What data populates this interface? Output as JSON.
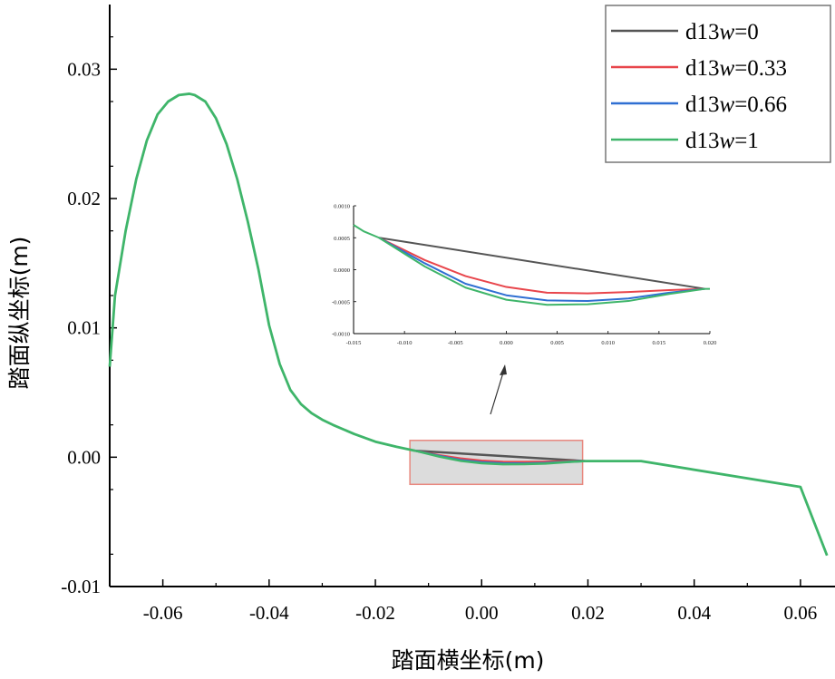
{
  "chart_data": {
    "type": "line",
    "title": "",
    "xlabel": "踏面横坐标(m)",
    "ylabel": "踏面纵坐标(m)",
    "xlim": [
      -0.07,
      0.0665
    ],
    "ylim": [
      -0.01,
      0.035
    ],
    "xticks": [
      "-0.06",
      "-0.04",
      "-0.02",
      "0.00",
      "0.02",
      "0.04",
      "0.06"
    ],
    "xtick_values": [
      -0.06,
      -0.04,
      -0.02,
      0.0,
      0.02,
      0.04,
      0.06
    ],
    "yticks": [
      "-0.01",
      "0.00",
      "0.01",
      "0.02",
      "0.03"
    ],
    "ytick_values": [
      -0.01,
      0.0,
      0.01,
      0.02,
      0.03
    ],
    "legend_position": "top-right",
    "common_profile": {
      "x": [
        -0.07,
        -0.069,
        -0.067,
        -0.065,
        -0.063,
        -0.061,
        -0.059,
        -0.057,
        -0.055,
        -0.054,
        -0.052,
        -0.05,
        -0.048,
        -0.046,
        -0.044,
        -0.042,
        -0.04,
        -0.038,
        -0.036,
        -0.034,
        -0.032,
        -0.03,
        -0.028,
        -0.024,
        -0.02,
        -0.016,
        -0.0125
      ],
      "y": [
        0.007,
        0.0125,
        0.0175,
        0.0215,
        0.0245,
        0.0265,
        0.0275,
        0.028,
        0.0281,
        0.028,
        0.0275,
        0.0262,
        0.0242,
        0.0215,
        0.0182,
        0.0145,
        0.0102,
        0.0072,
        0.0052,
        0.0041,
        0.0034,
        0.0029,
        0.0025,
        0.0018,
        0.0012,
        0.0008,
        0.0005
      ]
    },
    "tail_profile": {
      "x": [
        0.0195,
        0.03,
        0.06,
        0.065
      ],
      "y": [
        -0.0003,
        -0.0003,
        -0.0023,
        -0.0076
      ]
    },
    "series": [
      {
        "name": "d13w=0",
        "label_prefix": "d13",
        "label_var": "w",
        "label_value": "=0",
        "color": "#555555",
        "x": [
          -0.0125,
          0.0195
        ],
        "y": [
          0.0005,
          -0.0003
        ]
      },
      {
        "name": "d13w=0.33",
        "label_prefix": "d13",
        "label_var": "w",
        "label_value": "=0.33",
        "color": "#e8454b",
        "x": [
          -0.0125,
          -0.008,
          -0.004,
          0.0,
          0.004,
          0.008,
          0.012,
          0.016,
          0.0195
        ],
        "y": [
          0.0005,
          0.00015,
          -0.0001,
          -0.00027,
          -0.00036,
          -0.00037,
          -0.00035,
          -0.00032,
          -0.0003
        ]
      },
      {
        "name": "d13w=0.66",
        "label_prefix": "d13",
        "label_var": "w",
        "label_value": "=0.66",
        "color": "#2f6fd2",
        "x": [
          -0.0125,
          -0.008,
          -0.004,
          0.0,
          0.004,
          0.008,
          0.012,
          0.016,
          0.0195
        ],
        "y": [
          0.0005,
          0.0001,
          -0.00022,
          -0.0004,
          -0.00048,
          -0.00049,
          -0.00045,
          -0.00036,
          -0.0003
        ]
      },
      {
        "name": "d13w=1",
        "label_prefix": "d13",
        "label_var": "w",
        "label_value": "=1",
        "color": "#3fb56a",
        "x": [
          -0.0125,
          -0.008,
          -0.004,
          0.0,
          0.004,
          0.008,
          0.012,
          0.016,
          0.0195
        ],
        "y": [
          0.0005,
          5e-05,
          -0.00028,
          -0.00047,
          -0.00055,
          -0.00054,
          -0.00049,
          -0.00038,
          -0.0003
        ]
      }
    ],
    "zoom_box": {
      "xlim": [
        -0.0135,
        0.019
      ],
      "ylim": [
        -0.0021,
        0.0013
      ]
    },
    "inset": {
      "xlim": [
        -0.015,
        0.02
      ],
      "ylim": [
        -0.001,
        0.001
      ],
      "xticks": [
        "-0.015",
        "-0.010",
        "-0.005",
        "0.000",
        "0.005",
        "0.010",
        "0.015",
        "0.020"
      ],
      "xtick_values": [
        -0.015,
        -0.01,
        -0.005,
        0.0,
        0.005,
        0.01,
        0.015,
        0.02
      ],
      "yticks": [
        "0.0010",
        "0.0005",
        "0.0000",
        "-0.0005",
        "-0.0010"
      ],
      "ytick_values": [
        0.001,
        0.0005,
        0.0,
        -0.0005,
        -0.001
      ]
    }
  }
}
